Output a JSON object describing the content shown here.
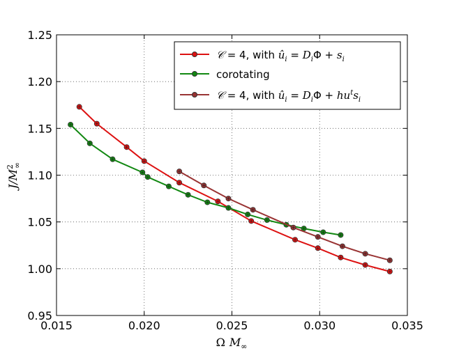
{
  "chart_data": {
    "type": "line",
    "xlabel": "Ω M∞",
    "ylabel": "J/M∞²",
    "xlim": [
      0.015,
      0.035
    ],
    "ylim": [
      0.95,
      1.25
    ],
    "xticks": [
      "0.015",
      "0.020",
      "0.025",
      "0.030",
      "0.035"
    ],
    "yticks": [
      "0.95",
      "1.00",
      "1.05",
      "1.10",
      "1.15",
      "1.20",
      "1.25"
    ],
    "grid": true,
    "legend_position": "top-right",
    "series": [
      {
        "name": "𝒞 = 4, with ûᵢ = DᵢΦ + sᵢ",
        "color": "#dd1111",
        "x": [
          0.0163,
          0.0173,
          0.019,
          0.02,
          0.022,
          0.0242,
          0.0261,
          0.0286,
          0.0299,
          0.0312,
          0.0326,
          0.034
        ],
        "y": [
          1.173,
          1.155,
          1.13,
          1.115,
          1.092,
          1.072,
          1.051,
          1.031,
          1.022,
          1.012,
          1.004,
          0.997
        ]
      },
      {
        "name": "corotating",
        "color": "#118811",
        "x": [
          0.0158,
          0.0169,
          0.0182,
          0.0199,
          0.0202,
          0.0214,
          0.0225,
          0.0236,
          0.0248,
          0.0259,
          0.027,
          0.0281,
          0.0291,
          0.0302,
          0.0312
        ],
        "y": [
          1.154,
          1.134,
          1.117,
          1.103,
          1.098,
          1.088,
          1.079,
          1.071,
          1.065,
          1.058,
          1.052,
          1.047,
          1.043,
          1.039,
          1.036
        ]
      },
      {
        "name": "𝒞 = 4, with ûᵢ = DᵢΦ + huᵗsᵢ",
        "color": "#993333",
        "x": [
          0.022,
          0.0234,
          0.0248,
          0.0262,
          0.0285,
          0.0299,
          0.0313,
          0.0326,
          0.034
        ],
        "y": [
          1.104,
          1.089,
          1.075,
          1.063,
          1.044,
          1.034,
          1.024,
          1.016,
          1.009
        ]
      }
    ]
  }
}
